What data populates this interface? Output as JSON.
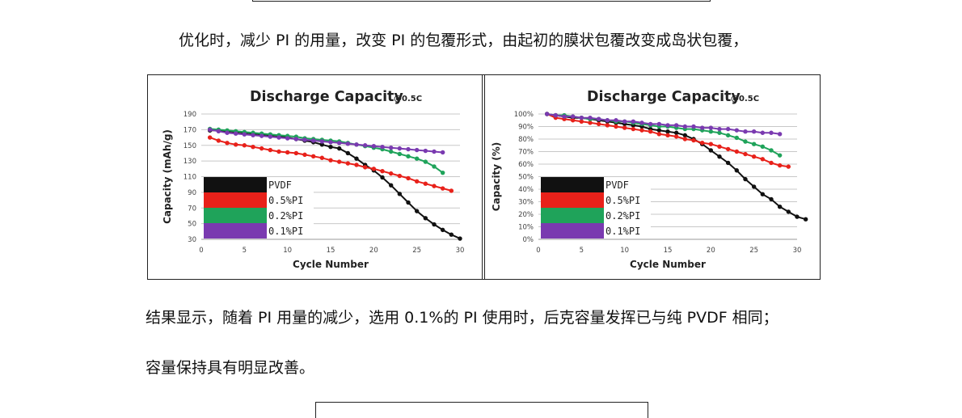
{
  "text": {
    "p1": "优化时，减少 PI 的用量，改变 PI 的包覆形式，由起初的膜状包覆改变成岛状包覆，",
    "p2": "结果显示，随着 PI 用量的减少，选用 0.1%的 PI 使用时，后克容量发挥已与纯 PVDF 相同；",
    "p3": "容量保持具有明显改善。"
  },
  "chart_data": [
    {
      "type": "line",
      "title": "Discharge Capacity",
      "subtitle": "@0.5C",
      "xlabel": "Cycle Number",
      "ylabel": "Capacity (mAh/g)",
      "xlim": [
        0,
        30
      ],
      "xticks": [
        0,
        5,
        10,
        15,
        20,
        25,
        30
      ],
      "ylim": [
        30,
        190
      ],
      "yticks": [
        30,
        50,
        70,
        90,
        110,
        130,
        150,
        170,
        190
      ],
      "ytick_labels": [
        "30",
        "50",
        "70",
        "90",
        "110",
        "130",
        "150",
        "170",
        "190"
      ],
      "grid": true,
      "legend_position": "bottom-left",
      "series": [
        {
          "name": "PVDF",
          "color": "#111111",
          "x": [
            1,
            2,
            3,
            4,
            5,
            6,
            7,
            8,
            9,
            10,
            11,
            12,
            13,
            14,
            15,
            16,
            17,
            18,
            19,
            20,
            21,
            22,
            23,
            24,
            25,
            26,
            27,
            28,
            29,
            30
          ],
          "y": [
            169,
            169,
            168,
            167,
            166,
            165,
            164,
            163,
            162,
            160,
            158,
            156,
            154,
            151,
            148,
            146,
            140,
            133,
            125,
            118,
            109,
            99,
            88,
            77,
            66,
            57,
            49,
            42,
            36,
            31
          ]
        },
        {
          "name": "0.5%PI",
          "color": "#e8211a",
          "x": [
            1,
            2,
            3,
            4,
            5,
            6,
            7,
            8,
            9,
            10,
            11,
            12,
            13,
            14,
            15,
            16,
            17,
            18,
            19,
            20,
            21,
            22,
            23,
            24,
            25,
            26,
            27,
            28,
            29
          ],
          "y": [
            160,
            156,
            153,
            151,
            150,
            148,
            146,
            144,
            142,
            141,
            140,
            138,
            136,
            134,
            131,
            129,
            127,
            125,
            122,
            120,
            117,
            114,
            111,
            108,
            104,
            101,
            98,
            95,
            92
          ]
        },
        {
          "name": "0.2%PI",
          "color": "#1fa35a",
          "x": [
            1,
            2,
            3,
            4,
            5,
            6,
            7,
            8,
            9,
            10,
            11,
            12,
            13,
            14,
            15,
            16,
            17,
            18,
            19,
            20,
            21,
            22,
            23,
            24,
            25,
            26,
            27,
            28
          ],
          "y": [
            171,
            170,
            169,
            168,
            167,
            166,
            165,
            164,
            163,
            162,
            161,
            159,
            158,
            157,
            156,
            155,
            153,
            151,
            149,
            147,
            145,
            142,
            139,
            136,
            133,
            129,
            123,
            115
          ]
        },
        {
          "name": "0.1%PI",
          "color": "#7a3ab0",
          "x": [
            1,
            2,
            3,
            4,
            5,
            6,
            7,
            8,
            9,
            10,
            11,
            12,
            13,
            14,
            15,
            16,
            17,
            18,
            19,
            20,
            21,
            22,
            23,
            24,
            25,
            26,
            27,
            28
          ],
          "y": [
            170,
            168,
            166,
            165,
            164,
            163,
            162,
            161,
            160,
            159,
            158,
            157,
            156,
            155,
            154,
            153,
            152,
            151,
            150,
            149,
            148,
            147,
            146,
            145,
            144,
            143,
            142,
            141
          ]
        }
      ]
    },
    {
      "type": "line",
      "title": "Discharge Capacity",
      "subtitle": "@0.5C",
      "xlabel": "Cycle Number",
      "ylabel": "Capacity (%)",
      "xlim": [
        0,
        30
      ],
      "xticks": [
        0,
        5,
        10,
        15,
        20,
        25,
        30
      ],
      "ylim": [
        0,
        100
      ],
      "yticks": [
        0,
        10,
        20,
        30,
        40,
        50,
        60,
        70,
        80,
        90,
        100
      ],
      "ytick_labels": [
        "0%",
        "10%",
        "20%",
        "30%",
        "40%",
        "50%",
        "60%",
        "70%",
        "80%",
        "90%",
        "100%"
      ],
      "grid": true,
      "legend_position": "bottom-left",
      "series": [
        {
          "name": "PVDF",
          "color": "#111111",
          "x": [
            1,
            2,
            3,
            4,
            5,
            6,
            7,
            8,
            9,
            10,
            11,
            12,
            13,
            14,
            15,
            16,
            17,
            18,
            19,
            20,
            21,
            22,
            23,
            24,
            25,
            26,
            27,
            28,
            29,
            30,
            31
          ],
          "y": [
            100,
            99,
            98,
            97,
            97,
            96,
            95,
            94,
            93,
            92,
            91,
            90,
            88,
            87,
            86,
            85,
            83,
            80,
            76,
            71,
            66,
            61,
            55,
            48,
            42,
            36,
            32,
            26,
            22,
            18,
            16
          ]
        },
        {
          "name": "0.5%PI",
          "color": "#e8211a",
          "x": [
            1,
            2,
            3,
            4,
            5,
            6,
            7,
            8,
            9,
            10,
            11,
            12,
            13,
            14,
            15,
            16,
            17,
            18,
            19,
            20,
            21,
            22,
            23,
            24,
            25,
            26,
            27,
            28,
            29
          ],
          "y": [
            100,
            97,
            96,
            95,
            94,
            93,
            92,
            91,
            90,
            89,
            88,
            87,
            86,
            84,
            83,
            82,
            80,
            79,
            77,
            76,
            74,
            72,
            70,
            68,
            66,
            64,
            61,
            59,
            58
          ]
        },
        {
          "name": "0.2%PI",
          "color": "#1fa35a",
          "x": [
            1,
            2,
            3,
            4,
            5,
            6,
            7,
            8,
            9,
            10,
            11,
            12,
            13,
            14,
            15,
            16,
            17,
            18,
            19,
            20,
            21,
            22,
            23,
            24,
            25,
            26,
            27,
            28
          ],
          "y": [
            100,
            99,
            99,
            98,
            97,
            96,
            96,
            95,
            94,
            94,
            93,
            92,
            91,
            90,
            90,
            89,
            88,
            88,
            87,
            86,
            85,
            83,
            81,
            78,
            76,
            74,
            71,
            67
          ]
        },
        {
          "name": "0.1%PI",
          "color": "#7a3ab0",
          "x": [
            1,
            2,
            3,
            4,
            5,
            6,
            7,
            8,
            9,
            10,
            11,
            12,
            13,
            14,
            15,
            16,
            17,
            18,
            19,
            20,
            21,
            22,
            23,
            24,
            25,
            26,
            27,
            28
          ],
          "y": [
            100,
            99,
            98,
            98,
            97,
            97,
            96,
            95,
            95,
            94,
            94,
            93,
            92,
            92,
            91,
            91,
            90,
            90,
            89,
            89,
            88,
            88,
            87,
            86,
            86,
            85,
            85,
            84
          ]
        }
      ]
    }
  ]
}
